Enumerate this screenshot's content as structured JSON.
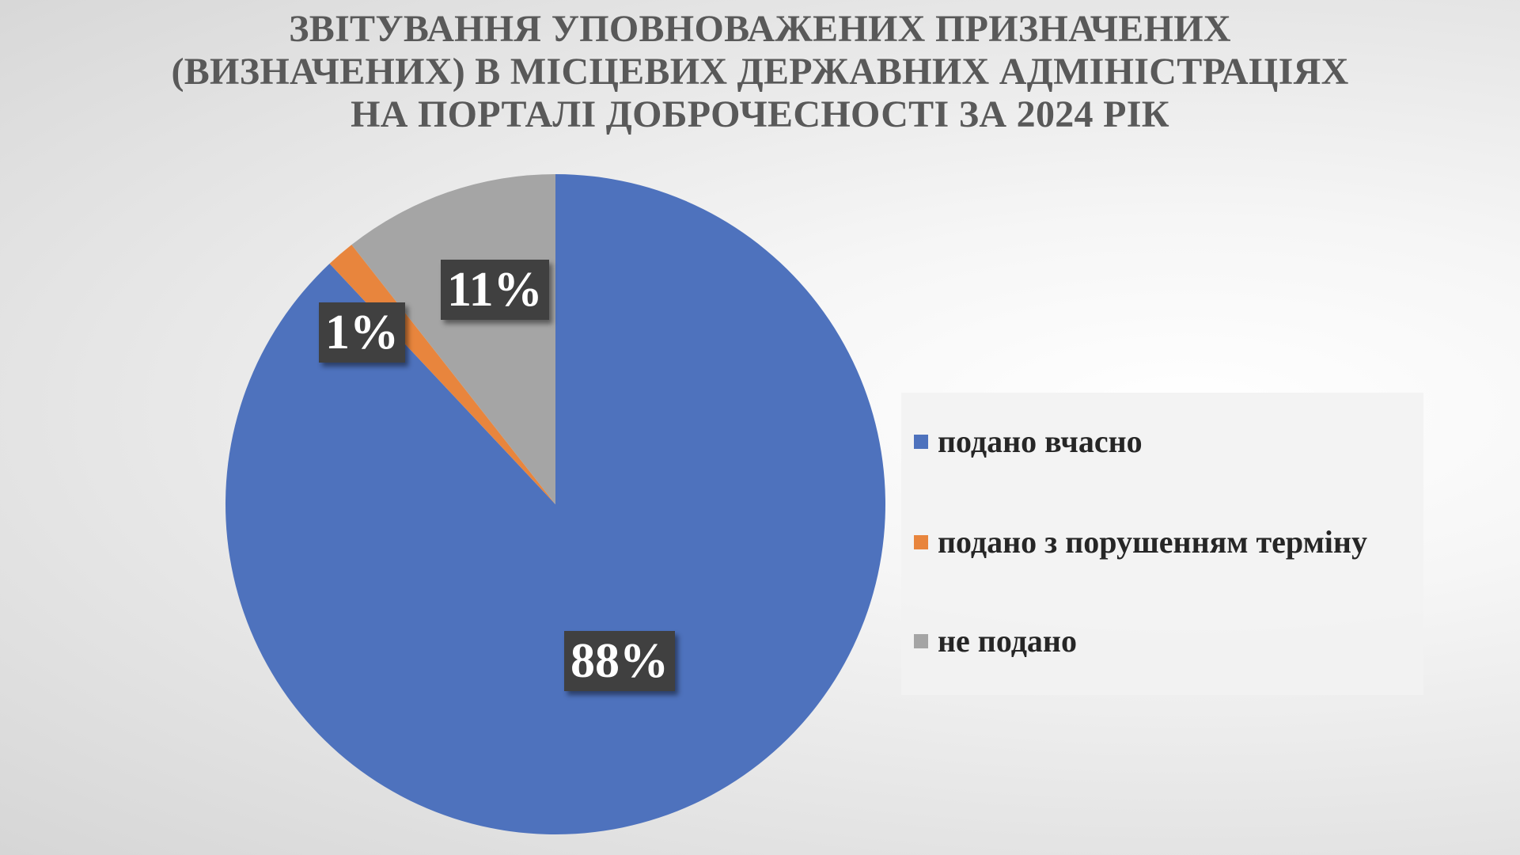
{
  "chart_data": {
    "type": "pie",
    "title_lines": [
      "ЗВІТУВАННЯ УПОВНОВАЖЕНИХ ПРИЗНАЧЕНИХ",
      "(ВИЗНАЧЕНИХ) В МІСЦЕВИХ ДЕРЖАВНИХ АДМІНІСТРАЦІЯХ",
      "НА ПОРТАЛІ ДОБРОЧЕСНОСТІ ЗА 2024 РІК"
    ],
    "slices": [
      {
        "name": "подано вчасно",
        "value": 88,
        "label": "88%",
        "color": "#4e72bd"
      },
      {
        "name": "подано з порушенням терміну",
        "value": 1.4,
        "label": "1%",
        "color": "#e8853d"
      },
      {
        "name": "не подано",
        "value": 10.6,
        "label": "11%",
        "color": "#a5a5a5"
      }
    ],
    "legend_position": "right"
  }
}
